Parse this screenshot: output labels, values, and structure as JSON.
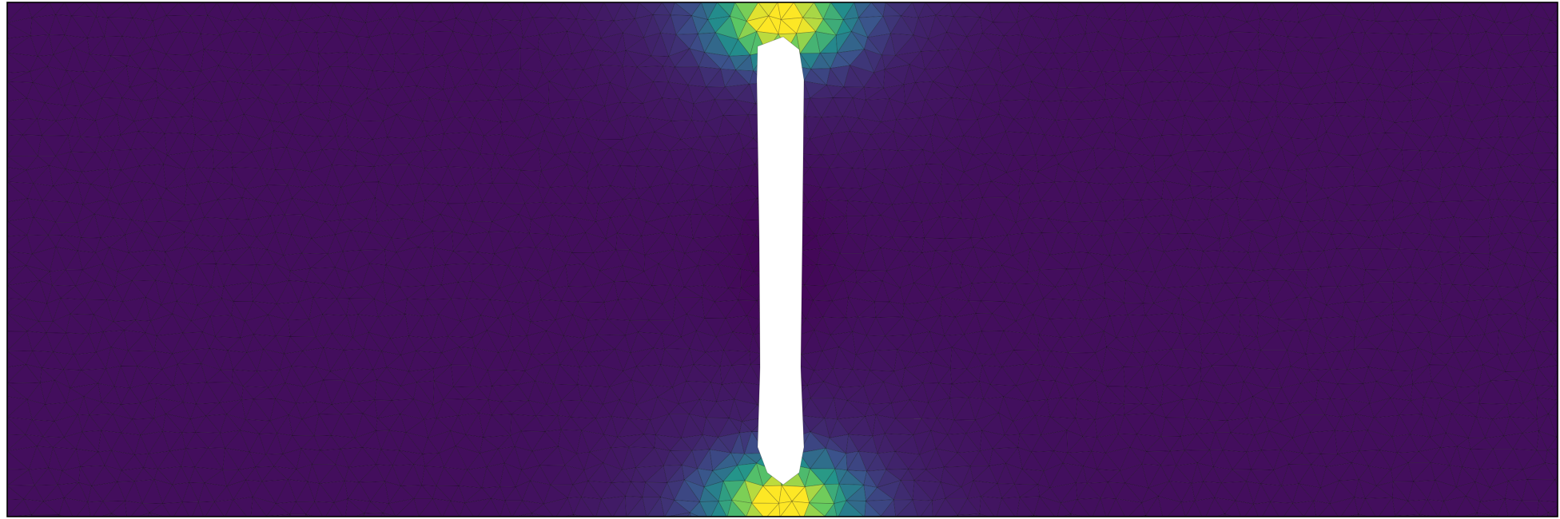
{
  "figure": {
    "kind": "finite-element stress field on a triangulated plate with a central vertical slot",
    "colormap": "viridis",
    "colormap_stops": [
      "#440154",
      "#3b528b",
      "#21918c",
      "#5ec962",
      "#fde725"
    ],
    "plate_background": "#3a0d5c",
    "mesh_edge_color": "#000000",
    "hole_fill": "#ffffff",
    "border_color": "#000000",
    "hot_spot_color": "#fde725",
    "text_labels": []
  }
}
